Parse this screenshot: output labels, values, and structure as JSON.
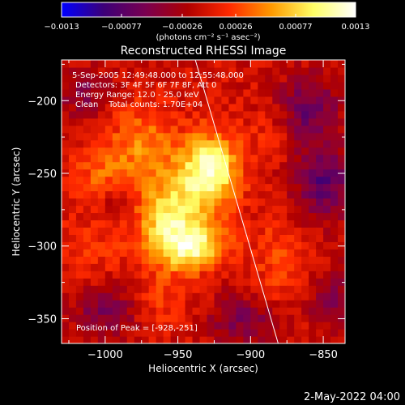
{
  "colorbar": {
    "ticks": [
      "-0.0013",
      "-0.00077",
      "-0.00026",
      "0.00026",
      "0.00077",
      "0.0013"
    ],
    "unit_label": "(photons cm⁻² s⁻¹ asec⁻²)",
    "stops": [
      "#0000ff",
      "#3c0078",
      "#7a0050",
      "#b00000",
      "#ff2a00",
      "#ff9a00",
      "#ffff66",
      "#ffffff"
    ]
  },
  "chart_data": {
    "type": "heatmap",
    "title": "Reconstructed RHESSI Image",
    "xlabel": "Heliocentric X (arcsec)",
    "ylabel": "Heliocentric Y (arcsec)",
    "xlim": [
      -1030,
      -835
    ],
    "ylim": [
      -367,
      -172
    ],
    "x_ticks": [
      -1000,
      -950,
      -900,
      -850
    ],
    "y_ticks": [
      -200,
      -250,
      -300,
      -350
    ],
    "x_tick_labels": [
      "−1000",
      "−950",
      "−900",
      "−850"
    ],
    "y_tick_labels": [
      "−200",
      "−250",
      "−300",
      "−350"
    ],
    "color_range": [
      -0.0013,
      0.0013
    ],
    "peak": [
      -928,
      -251
    ],
    "limb_line": [
      [
        -938,
        -172
      ],
      [
        -881,
        -367
      ]
    ],
    "info": [
      "5-Sep-2005 12:49:48.000 to 12:55:48.000",
      "Detectors: 3F 4F 5F 6F 7F 8F, Att 0",
      "Energy Range: 12.0 - 25.0 keV",
      "Clean    Total counts: 1.70E+04"
    ],
    "peak_label": "Position of Peak = [-928,-251]",
    "blobs": [
      {
        "x": -928,
        "y": -248,
        "sx": 14,
        "sy": 18,
        "v": 0.0012
      },
      {
        "x": -955,
        "y": -285,
        "sx": 16,
        "sy": 22,
        "v": 0.001
      },
      {
        "x": -935,
        "y": -300,
        "sx": 14,
        "sy": 10,
        "v": 0.0008
      },
      {
        "x": -975,
        "y": -230,
        "sx": 16,
        "sy": 20,
        "v": 0.0005
      },
      {
        "x": -1005,
        "y": -250,
        "sx": 14,
        "sy": 14,
        "v": 0.00035
      },
      {
        "x": -880,
        "y": -310,
        "sx": 14,
        "sy": 22,
        "v": 0.0003
      },
      {
        "x": -1010,
        "y": -300,
        "sx": 16,
        "sy": 14,
        "v": 0.00022
      },
      {
        "x": -885,
        "y": -225,
        "sx": 12,
        "sy": 12,
        "v": 0.00018
      },
      {
        "x": -960,
        "y": -340,
        "sx": 12,
        "sy": 10,
        "v": 0.0002
      },
      {
        "x": -850,
        "y": -255,
        "sx": 14,
        "sy": 18,
        "v": -0.0007
      },
      {
        "x": -860,
        "y": -205,
        "sx": 14,
        "sy": 16,
        "v": -0.0006
      },
      {
        "x": -1015,
        "y": -195,
        "sx": 12,
        "sy": 12,
        "v": -0.0004
      },
      {
        "x": -1000,
        "y": -345,
        "sx": 14,
        "sy": 12,
        "v": -0.0005
      },
      {
        "x": -905,
        "y": -350,
        "sx": 16,
        "sy": 12,
        "v": -0.0005
      },
      {
        "x": -845,
        "y": -335,
        "sx": 12,
        "sy": 14,
        "v": -0.0004
      },
      {
        "x": -990,
        "y": -270,
        "sx": 8,
        "sy": 8,
        "v": -0.0003
      }
    ]
  },
  "footer": {
    "date": "2-May-2022 04:00"
  }
}
